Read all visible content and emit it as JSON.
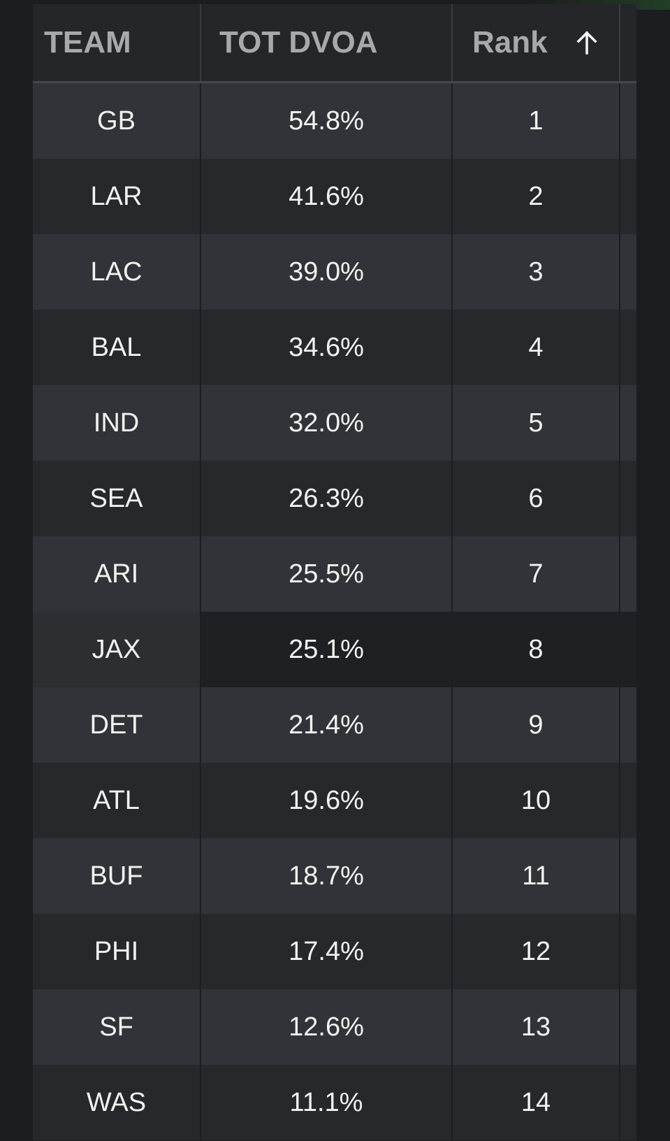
{
  "table": {
    "headers": {
      "team": "TEAM",
      "dvoa": "TOT DVOA",
      "rank": "Rank",
      "sort_icon": "arrow-up-icon"
    },
    "rows": [
      {
        "team": "GB",
        "dvoa": "54.8%",
        "rank": "1"
      },
      {
        "team": "LAR",
        "dvoa": "41.6%",
        "rank": "2"
      },
      {
        "team": "LAC",
        "dvoa": "39.0%",
        "rank": "3"
      },
      {
        "team": "BAL",
        "dvoa": "34.6%",
        "rank": "4"
      },
      {
        "team": "IND",
        "dvoa": "32.0%",
        "rank": "5"
      },
      {
        "team": "SEA",
        "dvoa": "26.3%",
        "rank": "6"
      },
      {
        "team": "ARI",
        "dvoa": "25.5%",
        "rank": "7"
      },
      {
        "team": "JAX",
        "dvoa": "25.1%",
        "rank": "8"
      },
      {
        "team": "DET",
        "dvoa": "21.4%",
        "rank": "9"
      },
      {
        "team": "ATL",
        "dvoa": "19.6%",
        "rank": "10"
      },
      {
        "team": "BUF",
        "dvoa": "18.7%",
        "rank": "11"
      },
      {
        "team": "PHI",
        "dvoa": "17.4%",
        "rank": "12"
      },
      {
        "team": "SF",
        "dvoa": "12.6%",
        "rank": "13"
      },
      {
        "team": "WAS",
        "dvoa": "11.1%",
        "rank": "14"
      }
    ]
  },
  "colors": {
    "background": "#1c1d20",
    "header_bg": "#24262a",
    "header_text": "#a8a9ac",
    "row_odd": "#313338",
    "row_even": "#26282c",
    "cell_text": "#f2f2f2"
  }
}
